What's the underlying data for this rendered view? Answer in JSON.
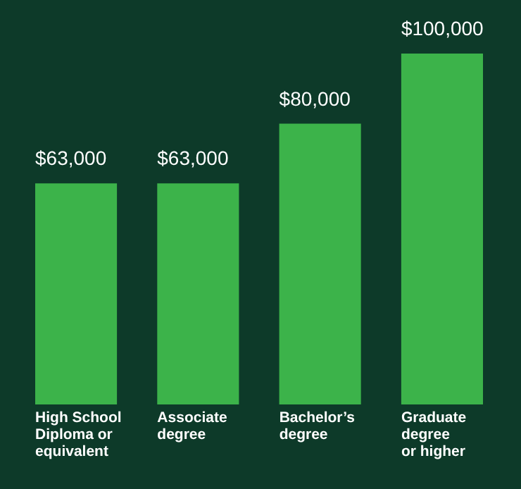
{
  "chart_data": {
    "type": "bar",
    "categories": [
      "High School\nDiploma or\nequivalent",
      "Associate\ndegree",
      "Bachelor’s\ndegree",
      "Graduate\ndegree\nor higher"
    ],
    "values": [
      63000,
      63000,
      80000,
      100000
    ],
    "value_labels": [
      "$63,000",
      "$63,000",
      "$80,000",
      "$100,000"
    ],
    "color": "#3cb34a",
    "grid": false
  }
}
